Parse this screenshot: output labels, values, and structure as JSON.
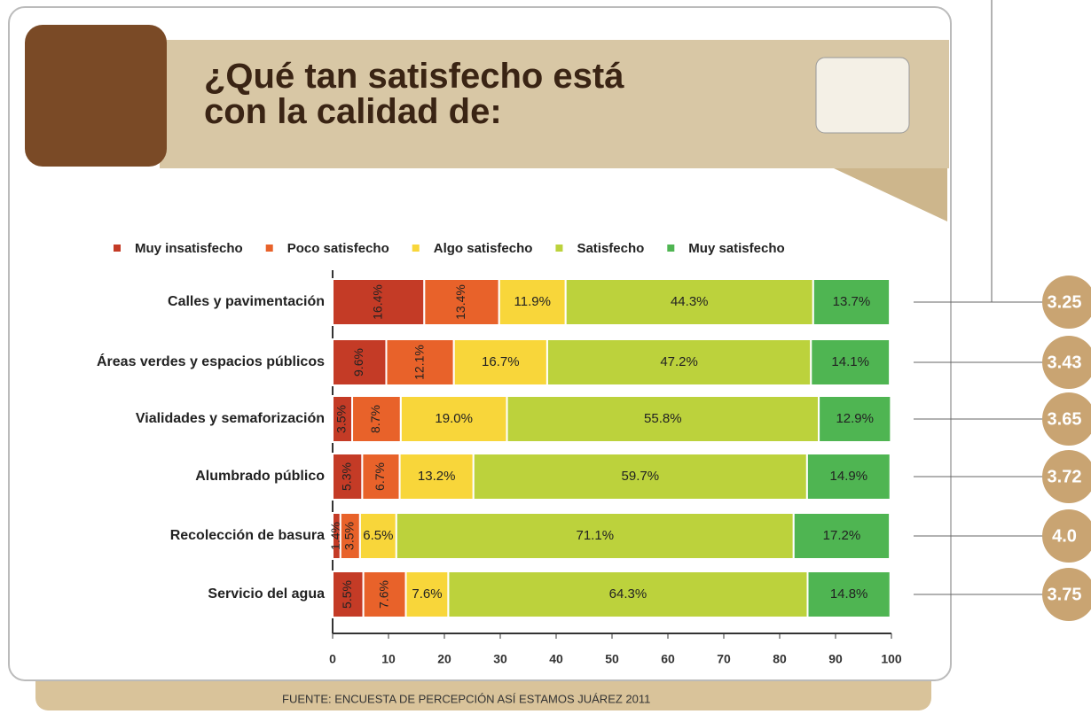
{
  "chart_data": {
    "type": "stacked-barh",
    "title": "¿Qué tan satisfecho está con la calidad de:",
    "source": "FUENTE: ENCUESTA DE PERCEPCIÓN ASÍ ESTAMOS JUÁREZ 2011",
    "categories": [
      "Calles y pavimentación",
      "Áreas verdes y espacios públicos",
      "Vialidades y semaforización",
      "Alumbrado público",
      "Recolección de basura",
      "Servicio del agua"
    ],
    "series": [
      {
        "name": "Muy insatisfecho",
        "color": "#c43b26",
        "values": [
          16.4,
          9.6,
          3.5,
          5.3,
          1.4,
          5.5
        ],
        "value_labels": [
          "16.4%",
          "9.6%",
          "3.5%",
          "5.3%",
          "1.4%",
          "5.5%"
        ]
      },
      {
        "name": "Poco satisfecho",
        "color": "#e8622a",
        "values": [
          13.4,
          12.1,
          8.7,
          6.7,
          3.5,
          7.6
        ],
        "value_labels": [
          "13.4%",
          "12.1%",
          "8.7%",
          "6.7%",
          "3.5%",
          "7.6%"
        ]
      },
      {
        "name": "Algo satisfecho",
        "color": "#f8d63a",
        "values": [
          11.9,
          16.7,
          19.0,
          13.2,
          6.5,
          7.6
        ],
        "value_labels": [
          "11.9%",
          "16.7%",
          "19.0%",
          "13.2%",
          "6.5%",
          "7.6%"
        ]
      },
      {
        "name": "Satisfecho",
        "color": "#bcd23c",
        "values": [
          44.3,
          47.2,
          55.8,
          59.7,
          71.1,
          64.3
        ],
        "value_labels": [
          "44.3%",
          "47.2%",
          "55.8%",
          "59.7%",
          "71.1%",
          "64.3%"
        ]
      },
      {
        "name": "Muy satisfecho",
        "color": "#4fb552",
        "values": [
          13.7,
          14.1,
          12.9,
          14.9,
          17.2,
          14.8
        ],
        "value_labels": [
          "13.7%",
          "14.1%",
          "12.9%",
          "14.9%",
          "17.2%",
          "14.8%"
        ]
      }
    ],
    "scores": [
      "3.25",
      "3.43",
      "3.65",
      "3.72",
      "4.0",
      "3.75"
    ],
    "xlim": [
      0,
      100
    ],
    "xticks": [
      0,
      10,
      20,
      30,
      40,
      50,
      60,
      70,
      80,
      90,
      100
    ],
    "grid": false
  }
}
